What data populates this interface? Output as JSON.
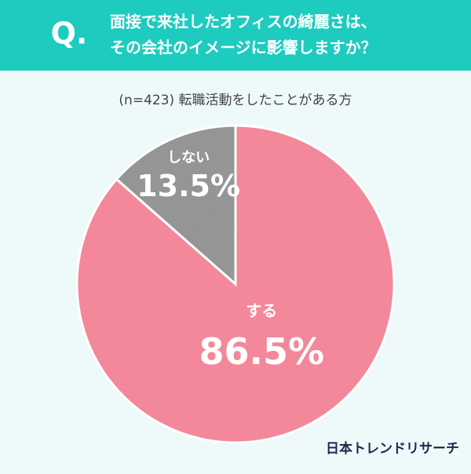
{
  "chart_data": {
    "type": "pie",
    "badge": "Q.",
    "title": [
      "面接で来社したオフィスの綺麗さは、",
      "その会社のイメージに影響しますか？"
    ],
    "subtitle": "(n=423) 転職活動をしたことがある方",
    "categories": [
      "する",
      "しない"
    ],
    "values": [
      86.5,
      13.5
    ],
    "value_labels": [
      "86.5%",
      "13.5%"
    ],
    "colors": [
      "#f3889a",
      "#9a9a9a"
    ],
    "source": "日本トレンドリサーチ"
  }
}
